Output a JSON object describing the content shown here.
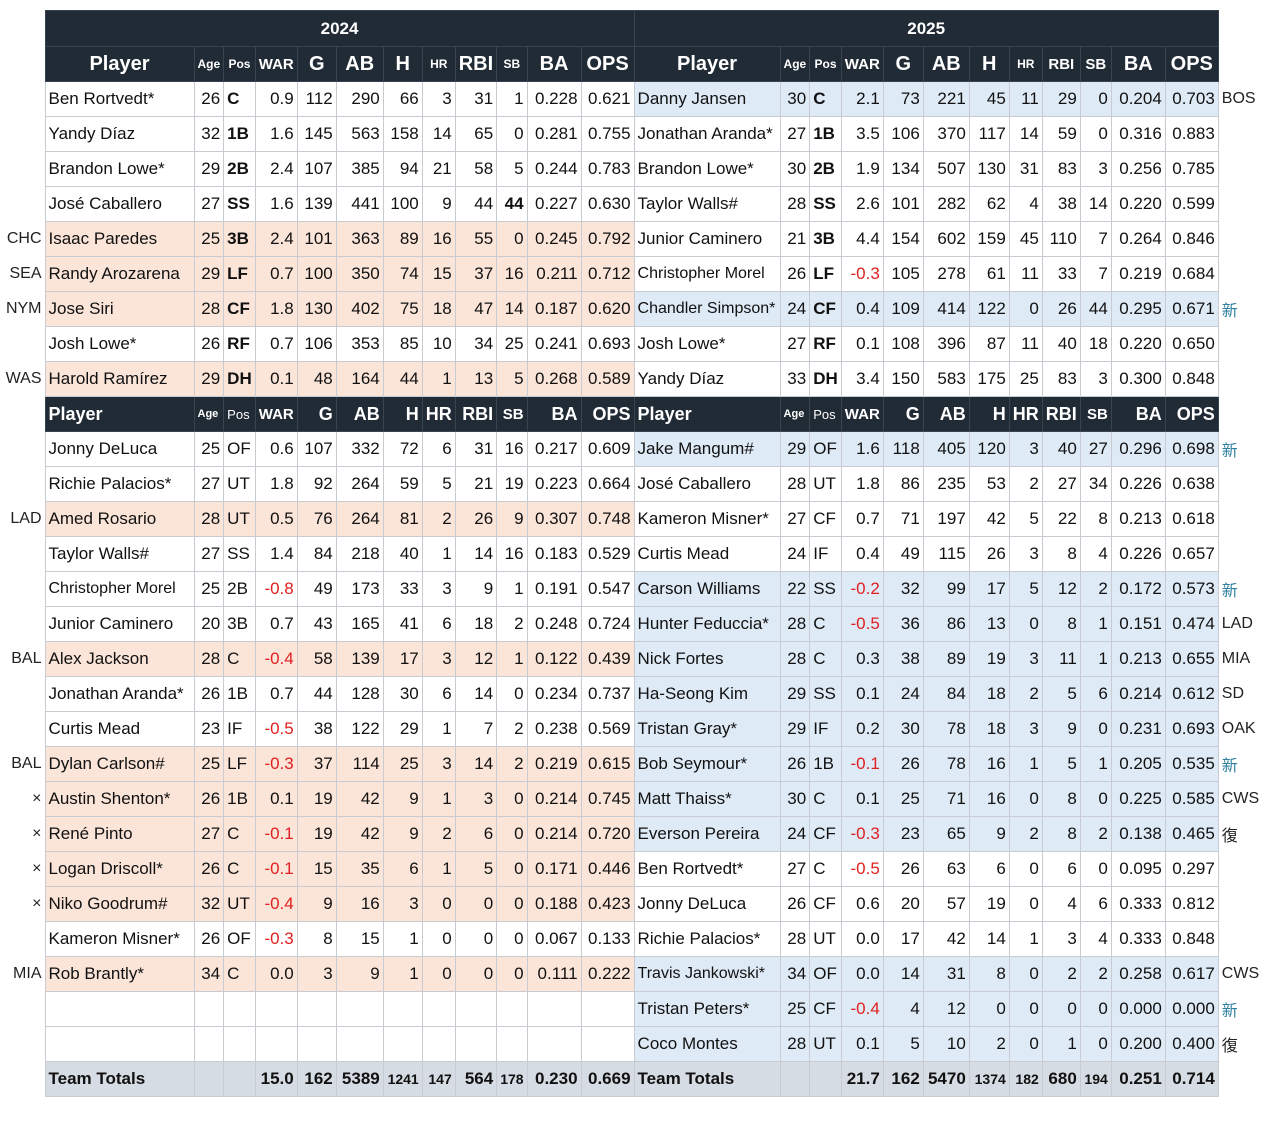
{
  "years": [
    "2024",
    "2025"
  ],
  "header1": [
    "Player",
    "Age",
    "Pos",
    "WAR",
    "G",
    "AB",
    "H",
    "HR",
    "RBI",
    "SB",
    "BA",
    "OPS"
  ],
  "header2": [
    "Player",
    "Age",
    "Pos",
    "WAR",
    "G",
    "AB",
    "H",
    "HR",
    "RBI",
    "SB",
    "BA",
    "OPS"
  ],
  "starters": [
    {
      "lm": "",
      "l": {
        "name": "Ben Rortvedt*",
        "age": "26",
        "pos": "C",
        "war": "0.9",
        "g": "112",
        "ab": "290",
        "h": "66",
        "hr": "3",
        "rbi": "31",
        "sb": "1",
        "ba": "0.228",
        "ops": "0.621"
      },
      "r": {
        "name": "Danny Jansen",
        "age": "30",
        "pos": "C",
        "war": "2.1",
        "g": "73",
        "ab": "221",
        "h": "45",
        "hr": "11",
        "rbi": "29",
        "sb": "0",
        "ba": "0.204",
        "ops": "0.703"
      },
      "rm": "BOS"
    },
    {
      "lm": "",
      "l": {
        "name": "Yandy Díaz",
        "age": "32",
        "pos": "1B",
        "war": "1.6",
        "g": "145",
        "ab": "563",
        "h": "158",
        "hr": "14",
        "rbi": "65",
        "sb": "0",
        "ba": "0.281",
        "ops": "0.755"
      },
      "r": {
        "name": "Jonathan Aranda*",
        "age": "27",
        "pos": "1B",
        "war": "3.5",
        "g": "106",
        "ab": "370",
        "h": "117",
        "hr": "14",
        "rbi": "59",
        "sb": "0",
        "ba": "0.316",
        "ops": "0.883"
      },
      "rm": ""
    },
    {
      "lm": "",
      "l": {
        "name": "Brandon Lowe*",
        "age": "29",
        "pos": "2B",
        "war": "2.4",
        "g": "107",
        "ab": "385",
        "h": "94",
        "hr": "21",
        "rbi": "58",
        "sb": "5",
        "ba": "0.244",
        "ops": "0.783"
      },
      "r": {
        "name": "Brandon Lowe*",
        "age": "30",
        "pos": "2B",
        "war": "1.9",
        "g": "134",
        "ab": "507",
        "h": "130",
        "hr": "31",
        "rbi": "83",
        "sb": "3",
        "ba": "0.256",
        "ops": "0.785"
      },
      "rm": ""
    },
    {
      "lm": "",
      "l": {
        "name": "José Caballero",
        "age": "27",
        "pos": "SS",
        "war": "1.6",
        "g": "139",
        "ab": "441",
        "h": "100",
        "hr": "9",
        "rbi": "44",
        "sb": "44",
        "ba": "0.227",
        "ops": "0.630"
      },
      "r": {
        "name": "Taylor Walls#",
        "age": "28",
        "pos": "SS",
        "war": "2.6",
        "g": "101",
        "ab": "282",
        "h": "62",
        "hr": "4",
        "rbi": "38",
        "sb": "14",
        "ba": "0.220",
        "ops": "0.599"
      },
      "rm": ""
    },
    {
      "lm": "CHC",
      "l": {
        "name": "Isaac Paredes",
        "age": "25",
        "pos": "3B",
        "war": "2.4",
        "g": "101",
        "ab": "363",
        "h": "89",
        "hr": "16",
        "rbi": "55",
        "sb": "0",
        "ba": "0.245",
        "ops": "0.792"
      },
      "r": {
        "name": "Junior Caminero",
        "age": "21",
        "pos": "3B",
        "war": "4.4",
        "g": "154",
        "ab": "602",
        "h": "159",
        "hr": "45",
        "rbi": "110",
        "sb": "7",
        "ba": "0.264",
        "ops": "0.846"
      },
      "rm": ""
    },
    {
      "lm": "SEA",
      "l": {
        "name": "Randy Arozarena",
        "age": "29",
        "pos": "LF",
        "war": "0.7",
        "g": "100",
        "ab": "350",
        "h": "74",
        "hr": "15",
        "rbi": "37",
        "sb": "16",
        "ba": "0.211",
        "ops": "0.712"
      },
      "r": {
        "name": "Christopher Morel",
        "age": "26",
        "pos": "LF",
        "war": "-0.3",
        "g": "105",
        "ab": "278",
        "h": "61",
        "hr": "11",
        "rbi": "33",
        "sb": "7",
        "ba": "0.219",
        "ops": "0.684"
      },
      "rm": ""
    },
    {
      "lm": "NYM",
      "l": {
        "name": "Jose Siri",
        "age": "28",
        "pos": "CF",
        "war": "1.8",
        "g": "130",
        "ab": "402",
        "h": "75",
        "hr": "18",
        "rbi": "47",
        "sb": "14",
        "ba": "0.187",
        "ops": "0.620"
      },
      "r": {
        "name": "Chandler Simpson*",
        "age": "24",
        "pos": "CF",
        "war": "0.4",
        "g": "109",
        "ab": "414",
        "h": "122",
        "hr": "0",
        "rbi": "26",
        "sb": "44",
        "ba": "0.295",
        "ops": "0.671"
      },
      "rm": "新"
    },
    {
      "lm": "",
      "l": {
        "name": "Josh Lowe*",
        "age": "26",
        "pos": "RF",
        "war": "0.7",
        "g": "106",
        "ab": "353",
        "h": "85",
        "hr": "10",
        "rbi": "34",
        "sb": "25",
        "ba": "0.241",
        "ops": "0.693"
      },
      "r": {
        "name": "Josh Lowe*",
        "age": "27",
        "pos": "RF",
        "war": "0.1",
        "g": "108",
        "ab": "396",
        "h": "87",
        "hr": "11",
        "rbi": "40",
        "sb": "18",
        "ba": "0.220",
        "ops": "0.650"
      },
      "rm": ""
    },
    {
      "lm": "WAS",
      "l": {
        "name": "Harold Ramírez",
        "age": "29",
        "pos": "DH",
        "war": "0.1",
        "g": "48",
        "ab": "164",
        "h": "44",
        "hr": "1",
        "rbi": "13",
        "sb": "5",
        "ba": "0.268",
        "ops": "0.589"
      },
      "r": {
        "name": "Yandy Díaz",
        "age": "33",
        "pos": "DH",
        "war": "3.4",
        "g": "150",
        "ab": "583",
        "h": "175",
        "hr": "25",
        "rbi": "83",
        "sb": "3",
        "ba": "0.300",
        "ops": "0.848"
      },
      "rm": ""
    }
  ],
  "bench": [
    {
      "lm": "",
      "l": {
        "name": "Jonny DeLuca",
        "age": "25",
        "pos": "OF",
        "war": "0.6",
        "g": "107",
        "ab": "332",
        "h": "72",
        "hr": "6",
        "rbi": "31",
        "sb": "16",
        "ba": "0.217",
        "ops": "0.609"
      },
      "r": {
        "name": "Jake Mangum#",
        "age": "29",
        "pos": "OF",
        "war": "1.6",
        "g": "118",
        "ab": "405",
        "h": "120",
        "hr": "3",
        "rbi": "40",
        "sb": "27",
        "ba": "0.296",
        "ops": "0.698"
      },
      "rm": "新"
    },
    {
      "lm": "",
      "l": {
        "name": "Richie Palacios*",
        "age": "27",
        "pos": "UT",
        "war": "1.8",
        "g": "92",
        "ab": "264",
        "h": "59",
        "hr": "5",
        "rbi": "21",
        "sb": "19",
        "ba": "0.223",
        "ops": "0.664"
      },
      "r": {
        "name": "José Caballero",
        "age": "28",
        "pos": "UT",
        "war": "1.8",
        "g": "86",
        "ab": "235",
        "h": "53",
        "hr": "2",
        "rbi": "27",
        "sb": "34",
        "ba": "0.226",
        "ops": "0.638"
      },
      "rm": ""
    },
    {
      "lm": "LAD",
      "l": {
        "name": "Amed Rosario",
        "age": "28",
        "pos": "UT",
        "war": "0.5",
        "g": "76",
        "ab": "264",
        "h": "81",
        "hr": "2",
        "rbi": "26",
        "sb": "9",
        "ba": "0.307",
        "ops": "0.748"
      },
      "r": {
        "name": "Kameron Misner*",
        "age": "27",
        "pos": "CF",
        "war": "0.7",
        "g": "71",
        "ab": "197",
        "h": "42",
        "hr": "5",
        "rbi": "22",
        "sb": "8",
        "ba": "0.213",
        "ops": "0.618"
      },
      "rm": ""
    },
    {
      "lm": "",
      "l": {
        "name": "Taylor Walls#",
        "age": "27",
        "pos": "SS",
        "war": "1.4",
        "g": "84",
        "ab": "218",
        "h": "40",
        "hr": "1",
        "rbi": "14",
        "sb": "16",
        "ba": "0.183",
        "ops": "0.529"
      },
      "r": {
        "name": "Curtis Mead",
        "age": "24",
        "pos": "IF",
        "war": "0.4",
        "g": "49",
        "ab": "115",
        "h": "26",
        "hr": "3",
        "rbi": "8",
        "sb": "4",
        "ba": "0.226",
        "ops": "0.657"
      },
      "rm": ""
    },
    {
      "lm": "",
      "l": {
        "name": "Christopher Morel",
        "age": "25",
        "pos": "2B",
        "war": "-0.8",
        "g": "49",
        "ab": "173",
        "h": "33",
        "hr": "3",
        "rbi": "9",
        "sb": "1",
        "ba": "0.191",
        "ops": "0.547"
      },
      "r": {
        "name": "Carson Williams",
        "age": "22",
        "pos": "SS",
        "war": "-0.2",
        "g": "32",
        "ab": "99",
        "h": "17",
        "hr": "5",
        "rbi": "12",
        "sb": "2",
        "ba": "0.172",
        "ops": "0.573"
      },
      "rm": "新"
    },
    {
      "lm": "",
      "l": {
        "name": "Junior Caminero",
        "age": "20",
        "pos": "3B",
        "war": "0.7",
        "g": "43",
        "ab": "165",
        "h": "41",
        "hr": "6",
        "rbi": "18",
        "sb": "2",
        "ba": "0.248",
        "ops": "0.724"
      },
      "r": {
        "name": "Hunter Feduccia*",
        "age": "28",
        "pos": "C",
        "war": "-0.5",
        "g": "36",
        "ab": "86",
        "h": "13",
        "hr": "0",
        "rbi": "8",
        "sb": "1",
        "ba": "0.151",
        "ops": "0.474"
      },
      "rm": "LAD"
    },
    {
      "lm": "BAL",
      "l": {
        "name": "Alex Jackson",
        "age": "28",
        "pos": "C",
        "war": "-0.4",
        "g": "58",
        "ab": "139",
        "h": "17",
        "hr": "3",
        "rbi": "12",
        "sb": "1",
        "ba": "0.122",
        "ops": "0.439"
      },
      "r": {
        "name": "Nick Fortes",
        "age": "28",
        "pos": "C",
        "war": "0.3",
        "g": "38",
        "ab": "89",
        "h": "19",
        "hr": "3",
        "rbi": "11",
        "sb": "1",
        "ba": "0.213",
        "ops": "0.655"
      },
      "rm": "MIA"
    },
    {
      "lm": "",
      "l": {
        "name": "Jonathan Aranda*",
        "age": "26",
        "pos": "1B",
        "war": "0.7",
        "g": "44",
        "ab": "128",
        "h": "30",
        "hr": "6",
        "rbi": "14",
        "sb": "0",
        "ba": "0.234",
        "ops": "0.737"
      },
      "r": {
        "name": "Ha-Seong Kim",
        "age": "29",
        "pos": "SS",
        "war": "0.1",
        "g": "24",
        "ab": "84",
        "h": "18",
        "hr": "2",
        "rbi": "5",
        "sb": "6",
        "ba": "0.214",
        "ops": "0.612"
      },
      "rm": "SD"
    },
    {
      "lm": "",
      "l": {
        "name": "Curtis Mead",
        "age": "23",
        "pos": "IF",
        "war": "-0.5",
        "g": "38",
        "ab": "122",
        "h": "29",
        "hr": "1",
        "rbi": "7",
        "sb": "2",
        "ba": "0.238",
        "ops": "0.569"
      },
      "r": {
        "name": "Tristan Gray*",
        "age": "29",
        "pos": "IF",
        "war": "0.2",
        "g": "30",
        "ab": "78",
        "h": "18",
        "hr": "3",
        "rbi": "9",
        "sb": "0",
        "ba": "0.231",
        "ops": "0.693"
      },
      "rm": "OAK"
    },
    {
      "lm": "BAL",
      "l": {
        "name": "Dylan Carlson#",
        "age": "25",
        "pos": "LF",
        "war": "-0.3",
        "g": "37",
        "ab": "114",
        "h": "25",
        "hr": "3",
        "rbi": "14",
        "sb": "2",
        "ba": "0.219",
        "ops": "0.615"
      },
      "r": {
        "name": "Bob Seymour*",
        "age": "26",
        "pos": "1B",
        "war": "-0.1",
        "g": "26",
        "ab": "78",
        "h": "16",
        "hr": "1",
        "rbi": "5",
        "sb": "1",
        "ba": "0.205",
        "ops": "0.535"
      },
      "rm": "新"
    },
    {
      "lm": "×",
      "l": {
        "name": "Austin Shenton*",
        "age": "26",
        "pos": "1B",
        "war": "0.1",
        "g": "19",
        "ab": "42",
        "h": "9",
        "hr": "1",
        "rbi": "3",
        "sb": "0",
        "ba": "0.214",
        "ops": "0.745"
      },
      "r": {
        "name": "Matt Thaiss*",
        "age": "30",
        "pos": "C",
        "war": "0.1",
        "g": "25",
        "ab": "71",
        "h": "16",
        "hr": "0",
        "rbi": "8",
        "sb": "0",
        "ba": "0.225",
        "ops": "0.585"
      },
      "rm": "CWS"
    },
    {
      "lm": "×",
      "l": {
        "name": "René Pinto",
        "age": "27",
        "pos": "C",
        "war": "-0.1",
        "g": "19",
        "ab": "42",
        "h": "9",
        "hr": "2",
        "rbi": "6",
        "sb": "0",
        "ba": "0.214",
        "ops": "0.720"
      },
      "r": {
        "name": "Everson Pereira",
        "age": "24",
        "pos": "CF",
        "war": "-0.3",
        "g": "23",
        "ab": "65",
        "h": "9",
        "hr": "2",
        "rbi": "8",
        "sb": "2",
        "ba": "0.138",
        "ops": "0.465"
      },
      "rm": "復"
    },
    {
      "lm": "×",
      "l": {
        "name": "Logan Driscoll*",
        "age": "26",
        "pos": "C",
        "war": "-0.1",
        "g": "15",
        "ab": "35",
        "h": "6",
        "hr": "1",
        "rbi": "5",
        "sb": "0",
        "ba": "0.171",
        "ops": "0.446"
      },
      "r": {
        "name": "Ben Rortvedt*",
        "age": "27",
        "pos": "C",
        "war": "-0.5",
        "g": "26",
        "ab": "63",
        "h": "6",
        "hr": "0",
        "rbi": "6",
        "sb": "0",
        "ba": "0.095",
        "ops": "0.297"
      },
      "rm": ""
    },
    {
      "lm": "×",
      "l": {
        "name": "Niko Goodrum#",
        "age": "32",
        "pos": "UT",
        "war": "-0.4",
        "g": "9",
        "ab": "16",
        "h": "3",
        "hr": "0",
        "rbi": "0",
        "sb": "0",
        "ba": "0.188",
        "ops": "0.423"
      },
      "r": {
        "name": "Jonny DeLuca",
        "age": "26",
        "pos": "CF",
        "war": "0.6",
        "g": "20",
        "ab": "57",
        "h": "19",
        "hr": "0",
        "rbi": "4",
        "sb": "6",
        "ba": "0.333",
        "ops": "0.812"
      },
      "rm": ""
    },
    {
      "lm": "",
      "l": {
        "name": "Kameron Misner*",
        "age": "26",
        "pos": "OF",
        "war": "-0.3",
        "g": "8",
        "ab": "15",
        "h": "1",
        "hr": "0",
        "rbi": "0",
        "sb": "0",
        "ba": "0.067",
        "ops": "0.133"
      },
      "r": {
        "name": "Richie Palacios*",
        "age": "28",
        "pos": "UT",
        "war": "0.0",
        "g": "17",
        "ab": "42",
        "h": "14",
        "hr": "1",
        "rbi": "3",
        "sb": "4",
        "ba": "0.333",
        "ops": "0.848"
      },
      "rm": ""
    },
    {
      "lm": "MIA",
      "l": {
        "name": "Rob Brantly*",
        "age": "34",
        "pos": "C",
        "war": "0.0",
        "g": "3",
        "ab": "9",
        "h": "1",
        "hr": "0",
        "rbi": "0",
        "sb": "0",
        "ba": "0.111",
        "ops": "0.222"
      },
      "r": {
        "name": "Travis Jankowski*",
        "age": "34",
        "pos": "OF",
        "war": "0.0",
        "g": "14",
        "ab": "31",
        "h": "8",
        "hr": "0",
        "rbi": "2",
        "sb": "2",
        "ba": "0.258",
        "ops": "0.617"
      },
      "rm": "CWS"
    },
    {
      "lm": "",
      "l": null,
      "r": {
        "name": "Tristan Peters*",
        "age": "25",
        "pos": "CF",
        "war": "-0.4",
        "g": "4",
        "ab": "12",
        "h": "0",
        "hr": "0",
        "rbi": "0",
        "sb": "0",
        "ba": "0.000",
        "ops": "0.000"
      },
      "rm": "新"
    },
    {
      "lm": "",
      "l": null,
      "r": {
        "name": "Coco Montes",
        "age": "28",
        "pos": "UT",
        "war": "0.1",
        "g": "5",
        "ab": "10",
        "h": "2",
        "hr": "0",
        "rbi": "1",
        "sb": "0",
        "ba": "0.200",
        "ops": "0.400"
      },
      "rm": "復"
    }
  ],
  "totals": {
    "label": "Team Totals",
    "y2024": {
      "war": "15.0",
      "g": "162",
      "ab": "5389",
      "h": "1241",
      "hr": "147",
      "rbi": "564",
      "sb": "178",
      "ba": "0.230",
      "ops": "0.669"
    },
    "y2025": {
      "war": "21.7",
      "g": "162",
      "ab": "5470",
      "h": "1374",
      "hr": "182",
      "rbi": "680",
      "sb": "194",
      "ba": "0.251",
      "ops": "0.714"
    }
  },
  "styles": {
    "header_bg": "#212b36",
    "departed_highlight": "#fbe4d8",
    "new_highlight": "#deeaf6",
    "negative_war_color": "#e02020",
    "totals_bg": "#d6dce4"
  },
  "highlight": {
    "starters_left_orange": [
      4,
      5,
      6,
      8
    ],
    "starters_right_blue": [
      0,
      6
    ],
    "bench_left_orange": [
      2,
      6,
      9,
      10,
      11,
      12,
      13,
      15
    ],
    "bench_right_blue": [
      0,
      4,
      5,
      6,
      7,
      8,
      9,
      10,
      11,
      15,
      16,
      17
    ]
  }
}
